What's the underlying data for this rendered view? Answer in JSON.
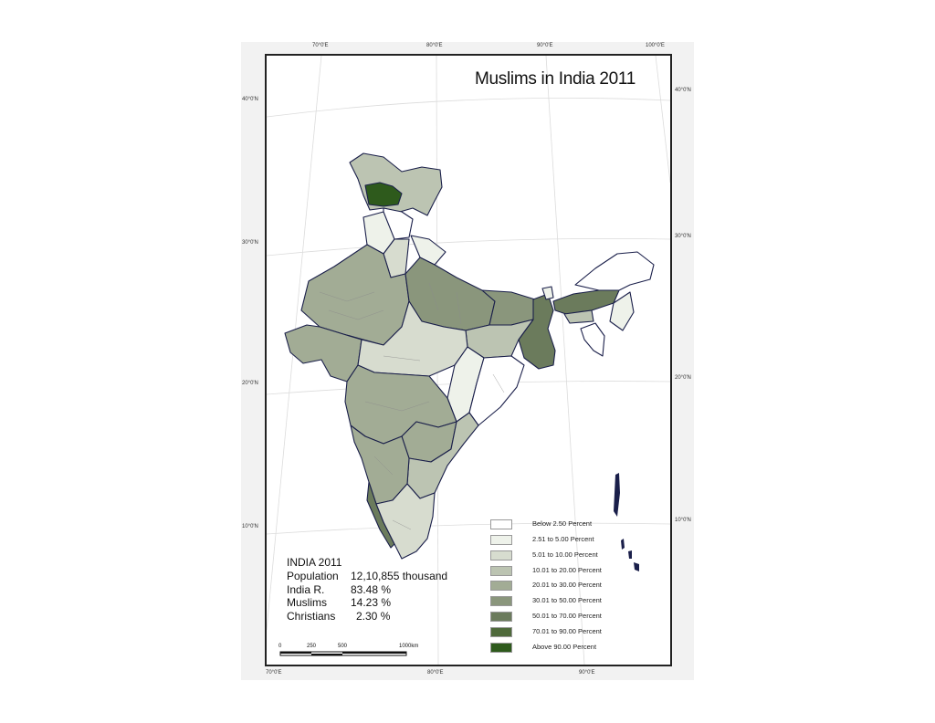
{
  "title": "Muslims in India 2011",
  "graticule": {
    "top_longitudes": [
      "70°0'E",
      "80°0'E",
      "90°0'E",
      "100°0'E"
    ],
    "bottom_longitudes": [
      "70°0'E",
      "80°0'E",
      "90°0'E"
    ],
    "left_latitudes": [
      "40°0'N",
      "30°0'N",
      "20°0'N",
      "10°0'N"
    ],
    "right_latitudes": [
      "40°0'N",
      "30°0'N",
      "20°0'N",
      "10°0'N"
    ]
  },
  "legend": [
    {
      "label": "Below 2.50 Percent",
      "color": "#ffffff"
    },
    {
      "label": "2.51 to 5.00 Percent",
      "color": "#eef2ea"
    },
    {
      "label": "5.01 to 10.00 Percent",
      "color": "#d7dccf"
    },
    {
      "label": "10.01 to 20.00 Percent",
      "color": "#bcc4b2"
    },
    {
      "label": "20.01 to 30.00 Percent",
      "color": "#a2ac95"
    },
    {
      "label": "30.01 to 50.00 Percent",
      "color": "#8a967c"
    },
    {
      "label": "50.01 to 70.00 Percent",
      "color": "#6b7b5c"
    },
    {
      "label": "70.01 to 90.00 Percent",
      "color": "#4f6a3b"
    },
    {
      "label": "Above 90.00 Percent",
      "color": "#2e5a1c"
    }
  ],
  "stats": {
    "heading": "INDIA 2011",
    "rows": [
      {
        "key": "Population",
        "value": "12,10,855 thousand"
      },
      {
        "key": "India R.",
        "value": "83.48 %"
      },
      {
        "key": "Muslims",
        "value": "14.23 %"
      },
      {
        "key": "Christians",
        "value": "2.30 %"
      }
    ]
  },
  "scale_bar": {
    "labels": [
      "0",
      "250",
      "500",
      "1000km"
    ]
  },
  "colors": {
    "border": "#1a1f4a",
    "district_line": "#8c8c8c",
    "graticule": "#dcdcdc"
  }
}
